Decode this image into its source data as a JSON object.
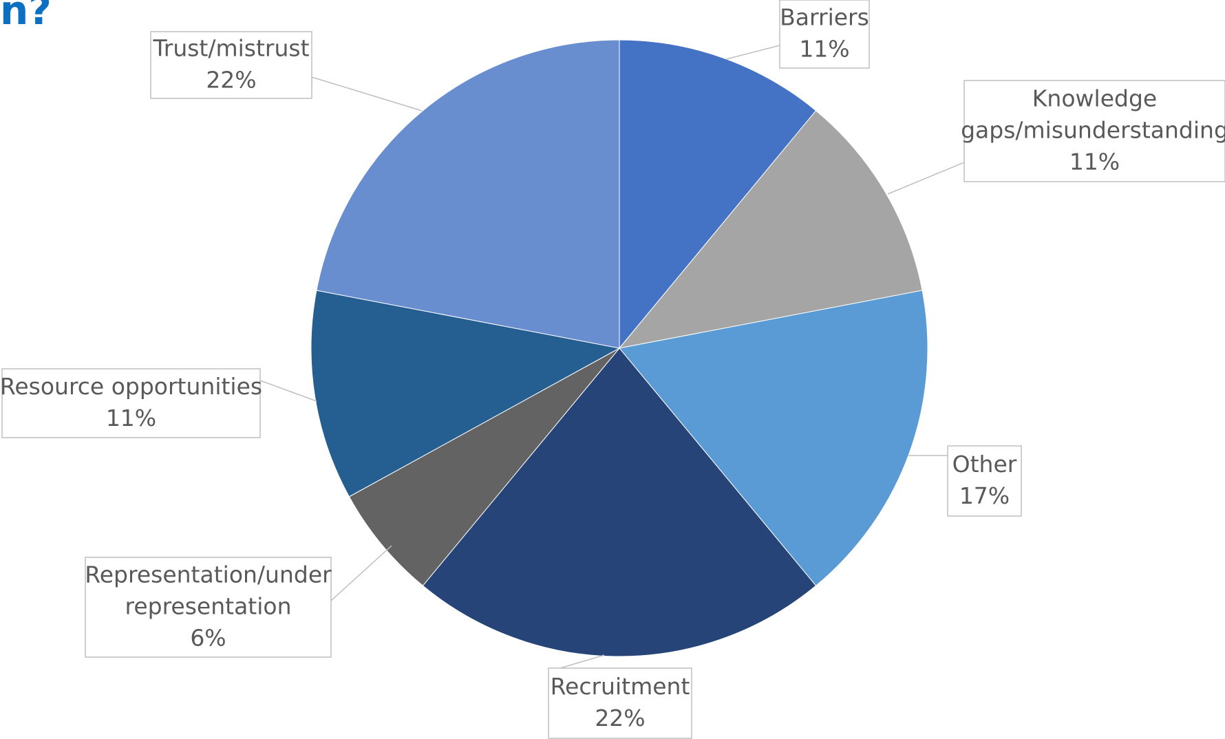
{
  "page": {
    "title_fragment": "n?"
  },
  "chart_data": {
    "type": "pie",
    "title": "",
    "slices": [
      {
        "label": "Barriers",
        "value": 11,
        "percent_label": "11%",
        "color": "#4472C4"
      },
      {
        "label": "Knowledge gaps/misunderstanding",
        "value": 11,
        "percent_label": "11%",
        "color": "#A5A5A5"
      },
      {
        "label": "Other",
        "value": 17,
        "percent_label": "17%",
        "color": "#5B9BD5"
      },
      {
        "label": "Recruitment",
        "value": 22,
        "percent_label": "22%",
        "color": "#264478"
      },
      {
        "label": "Representation/under representation",
        "value": 6,
        "percent_label": "6%",
        "color": "#636363"
      },
      {
        "label": "Resource opportunities",
        "value": 11,
        "percent_label": "11%",
        "color": "#255E91"
      },
      {
        "label": "Trust/mistrust",
        "value": 22,
        "percent_label": "22%",
        "color": "#698ED0"
      }
    ]
  }
}
